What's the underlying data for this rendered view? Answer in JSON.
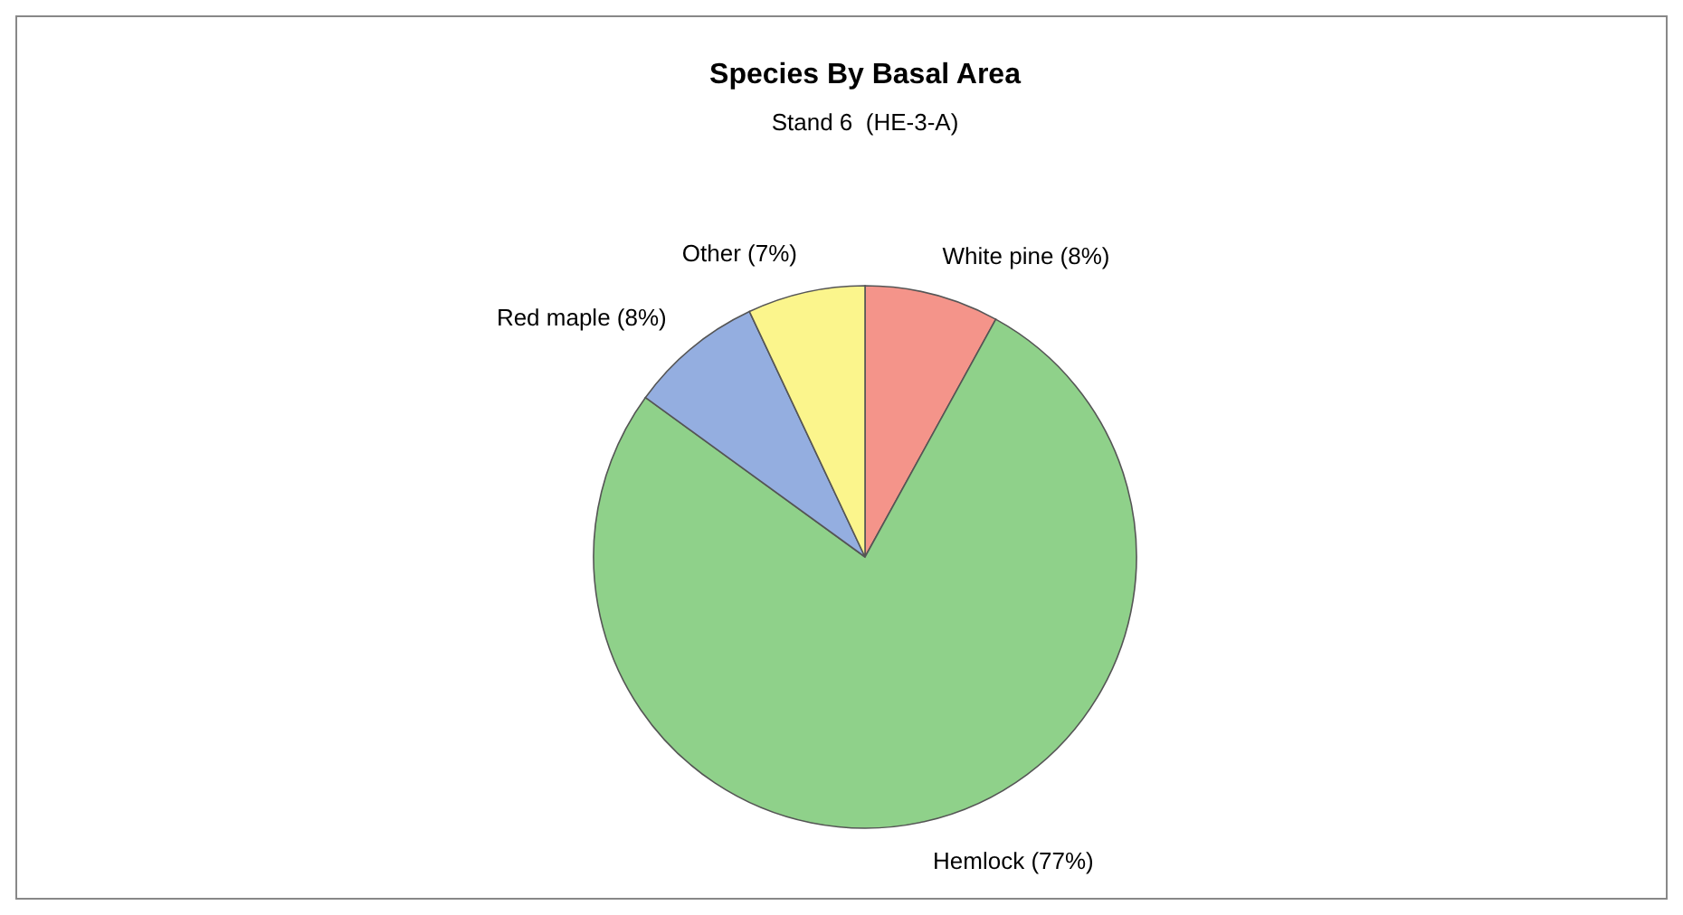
{
  "chart_data": {
    "type": "pie",
    "title": "Species By Basal Area",
    "subtitle": "Stand 6  (HE-3-A)",
    "categories": [
      "White pine (8%)",
      "Hemlock (77%)",
      "Red maple (8%)",
      "Other (7%)"
    ],
    "values": [
      8,
      77,
      8,
      7
    ],
    "colors": [
      "#f4948a",
      "#8fd18a",
      "#94aee0",
      "#fbf58c"
    ]
  }
}
